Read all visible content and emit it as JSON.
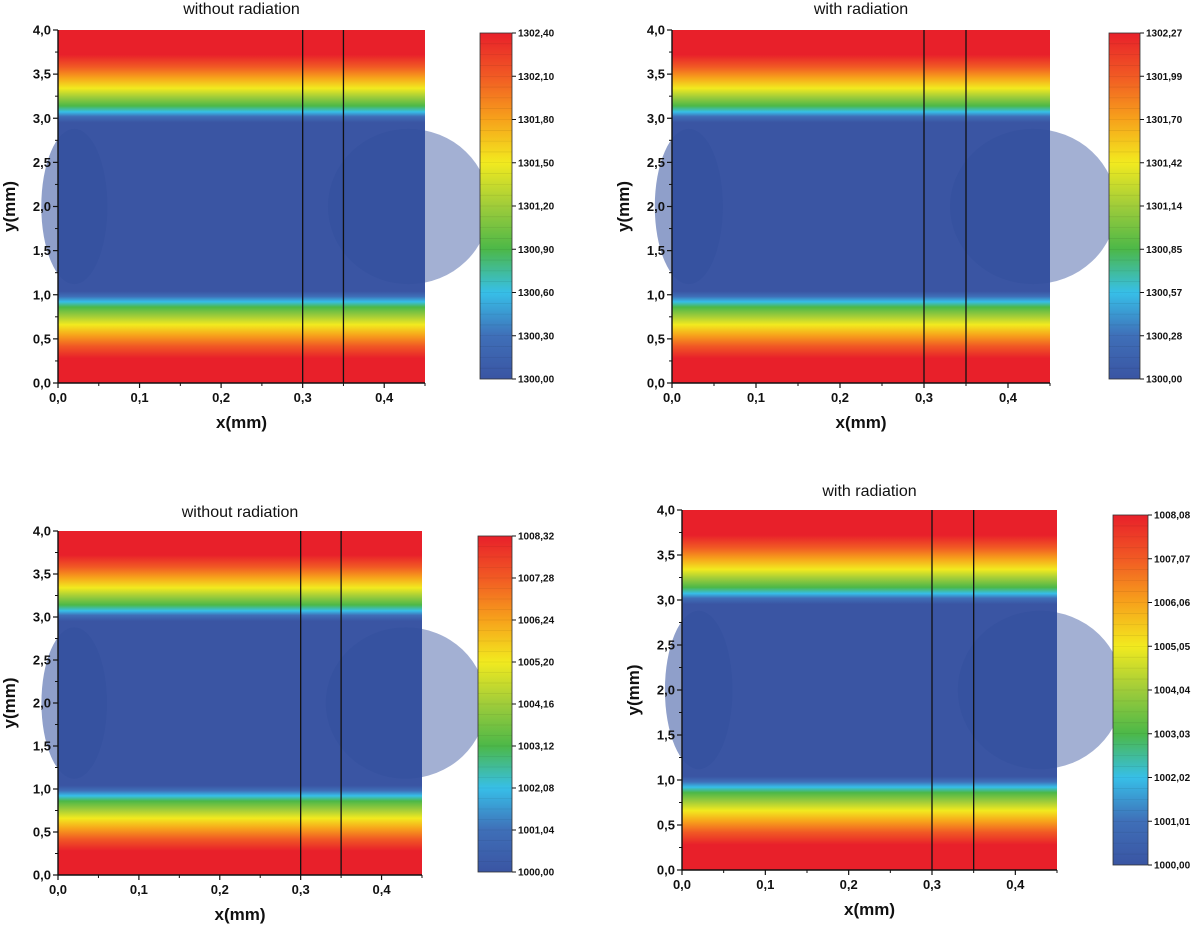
{
  "chart_data": [
    {
      "type": "heatmap",
      "title": "without radiation",
      "xlabel": "x(mm)",
      "ylabel": "y(mm)",
      "xlim": [
        0,
        0.45
      ],
      "ylim": [
        0,
        4
      ],
      "xticks": [
        "0,0",
        "0,1",
        "0,2",
        "0,3",
        "0,4"
      ],
      "yticks": [
        "0,0",
        "0,5",
        "1,0",
        "1,5",
        "2,0",
        "2,5",
        "3,0",
        "3,5",
        "4,0"
      ],
      "vertical_lines_x": [
        0.3,
        0.35
      ],
      "colorbar": {
        "min": 1300.0,
        "max": 1302.4,
        "ticks": [
          "1300,00",
          "1300,30",
          "1300,60",
          "1300,90",
          "1301,20",
          "1301,50",
          "1301,80",
          "1302,10",
          "1302,40"
        ]
      }
    },
    {
      "type": "heatmap",
      "title": "with radiation",
      "xlabel": "x(mm)",
      "ylabel": "y(mm)",
      "xlim": [
        0,
        0.45
      ],
      "ylim": [
        0,
        4
      ],
      "xticks": [
        "0,0",
        "0,1",
        "0,2",
        "0,3",
        "0,4"
      ],
      "yticks": [
        "0,0",
        "0,5",
        "1,0",
        "1,5",
        "2,0",
        "2,5",
        "3,0",
        "3,5",
        "4,0"
      ],
      "vertical_lines_x": [
        0.3,
        0.35
      ],
      "colorbar": {
        "min": 1300.0,
        "max": 1302.27,
        "ticks": [
          "1300,00",
          "1300,28",
          "1300,57",
          "1300,85",
          "1301,14",
          "1301,42",
          "1301,70",
          "1301,99",
          "1302,27"
        ]
      }
    },
    {
      "type": "heatmap",
      "title": "without radiation",
      "xlabel": "x(mm)",
      "ylabel": "y(mm)",
      "xlim": [
        0,
        0.45
      ],
      "ylim": [
        0,
        4
      ],
      "xticks": [
        "0,0",
        "0,1",
        "0,2",
        "0,3",
        "0,4"
      ],
      "yticks": [
        "0,0",
        "0,5",
        "1,0",
        "1,5",
        "2,0",
        "2,5",
        "3,0",
        "3,5",
        "4,0"
      ],
      "vertical_lines_x": [
        0.3,
        0.35
      ],
      "colorbar": {
        "min": 1000.0,
        "max": 1008.32,
        "ticks": [
          "1000,00",
          "1001,04",
          "1002,08",
          "1003,12",
          "1004,16",
          "1005,20",
          "1006,24",
          "1007,28",
          "1008,32"
        ]
      }
    },
    {
      "type": "heatmap",
      "title": "with radiation",
      "xlabel": "x(mm)",
      "ylabel": "y(mm)",
      "xlim": [
        0,
        0.45
      ],
      "ylim": [
        0,
        4
      ],
      "xticks": [
        "0,0",
        "0,1",
        "0,2",
        "0,3",
        "0,4"
      ],
      "yticks": [
        "0,0",
        "0,5",
        "1,0",
        "1,5",
        "2,0",
        "2,5",
        "3,0",
        "3,5",
        "4,0"
      ],
      "vertical_lines_x": [
        0.3,
        0.35
      ],
      "colorbar": {
        "min": 1000.0,
        "max": 1008.08,
        "ticks": [
          "1000,00",
          "1001,01",
          "1002,02",
          "1003,03",
          "1004,04",
          "1005,05",
          "1006,06",
          "1007,07",
          "1008,08"
        ]
      }
    }
  ],
  "colormap": [
    "#3a55a3",
    "#3f6fb8",
    "#37bfe8",
    "#4cb848",
    "#9fcc3a",
    "#f2ea1f",
    "#f7a21b",
    "#f15a24",
    "#e8202a"
  ]
}
